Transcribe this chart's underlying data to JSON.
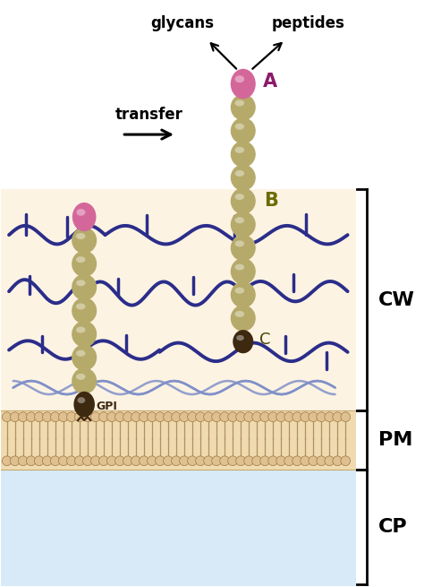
{
  "fig_width": 4.74,
  "fig_height": 6.55,
  "bg_color": "#ffffff",
  "cw_bg_color": "#fdf3e3",
  "pm_bg_color": "#f0dbb0",
  "cp_bg_color": "#d8eaf8",
  "bead_color_tan": "#b5aa6a",
  "bead_color_pink": "#d4679a",
  "bead_color_dark": "#3d2810",
  "glucan_color": "#2b2d8a",
  "chitin_color": "#8090c8",
  "label_A": "A",
  "label_B": "B",
  "label_C": "C",
  "label_CW": "CW",
  "label_PM": "PM",
  "label_CP": "CP",
  "label_GPI": "GPI",
  "label_glycans": "glycans",
  "label_peptides": "peptides",
  "label_transfer": "transfer",
  "label_color_A": "#8b1a6b",
  "label_color_B": "#6b6b00",
  "label_color_C": "#444400"
}
